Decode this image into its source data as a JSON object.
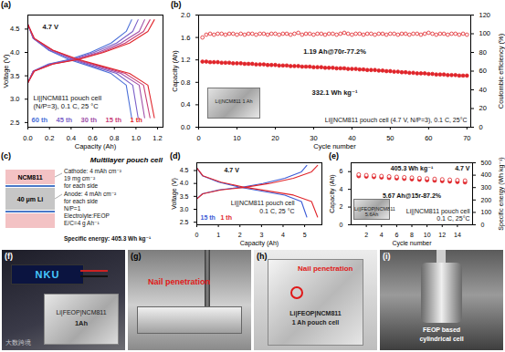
{
  "chart_data": [
    {
      "panel_label": "(a)",
      "type": "line",
      "xlabel": "Capacity (Ah)",
      "ylabel": "Voltage (V)",
      "xlim": [
        0,
        1.25
      ],
      "xticks": [
        {
          "value": 0,
          "label": "0.0"
        },
        0.2,
        0.4,
        0.6,
        0.8,
        {
          "value": 1,
          "label": "1.0"
        },
        1.2
      ],
      "ylim": [
        2.4,
        4.8
      ],
      "yticks": [
        2.5,
        {
          "value": 3,
          "label": "3.0"
        },
        3.5,
        {
          "value": 4,
          "label": "4.0"
        },
        4.5
      ],
      "annotations": [
        "4.7 V",
        "Li||NCM811 pouch cell",
        "(N/P=3), 0.1 C, 25 °C"
      ],
      "legend": "bottom-left",
      "series": [
        {
          "name": "60 th",
          "color": "#4a6fd8",
          "x": [
            0,
            0.05,
            0.19,
            0.38,
            0.58,
            0.77,
            0.91,
            0.96,
            0.96,
            0,
            0.05,
            0.19,
            0.38,
            0.58,
            0.77,
            0.91,
            0.96
          ],
          "values": [
            3.35,
            3.6,
            3.75,
            3.85,
            4.0,
            4.2,
            4.45,
            4.7,
            null,
            4.6,
            4.3,
            4.05,
            3.85,
            3.7,
            3.55,
            3.3,
            2.6
          ]
        },
        {
          "name": "45 th",
          "color": "#7a5fc8",
          "x": [
            0,
            0.05,
            0.2,
            0.41,
            0.61,
            0.82,
            0.97,
            1.02,
            1.02,
            0,
            0.05,
            0.2,
            0.41,
            0.61,
            0.82,
            0.97,
            1.02
          ],
          "values": [
            3.35,
            3.6,
            3.75,
            3.85,
            4.0,
            4.2,
            4.45,
            4.7,
            null,
            4.6,
            4.3,
            4.05,
            3.85,
            3.7,
            3.55,
            3.3,
            2.6
          ]
        },
        {
          "name": "30 th",
          "color": "#a04fa8",
          "x": [
            0,
            0.05,
            0.22,
            0.43,
            0.65,
            0.86,
            1.03,
            1.08,
            1.08,
            0,
            0.05,
            0.22,
            0.43,
            0.65,
            0.86,
            1.03,
            1.08
          ],
          "values": [
            3.35,
            3.6,
            3.75,
            3.85,
            4.0,
            4.2,
            4.45,
            4.7,
            null,
            4.6,
            4.3,
            4.05,
            3.85,
            3.7,
            3.55,
            3.3,
            2.6
          ]
        },
        {
          "name": "15 th",
          "color": "#c84078",
          "x": [
            0,
            0.06,
            0.23,
            0.45,
            0.68,
            0.9,
            1.07,
            1.13,
            1.13,
            0,
            0.06,
            0.23,
            0.45,
            0.68,
            0.9,
            1.07,
            1.13
          ],
          "values": [
            3.35,
            3.6,
            3.75,
            3.85,
            4.0,
            4.2,
            4.45,
            4.7,
            null,
            4.6,
            4.3,
            4.05,
            3.85,
            3.7,
            3.55,
            3.3,
            2.6
          ]
        },
        {
          "name": "1 th",
          "color": "#e0242a",
          "x": [
            0,
            0.06,
            0.23,
            0.47,
            0.7,
            0.94,
            1.11,
            1.17,
            1.17,
            0,
            0.06,
            0.23,
            0.47,
            0.7,
            0.94,
            1.11,
            1.17
          ],
          "values": [
            3.35,
            3.6,
            3.75,
            3.85,
            4.0,
            4.2,
            4.45,
            4.7,
            null,
            4.6,
            4.3,
            4.05,
            3.85,
            3.7,
            3.55,
            3.3,
            2.6
          ]
        }
      ]
    },
    {
      "panel_label": "(b)",
      "type": "scatter",
      "xlabel": "Cycle number",
      "ylabel": "Capacity (Ah)",
      "y2label": "Coulombic efficiency (%)",
      "x": [
        1,
        2,
        3,
        4,
        5,
        6,
        7,
        8,
        9,
        10,
        11,
        12,
        13,
        14,
        15,
        16,
        17,
        18,
        19,
        20,
        21,
        22,
        23,
        24,
        25,
        26,
        27,
        28,
        29,
        30,
        31,
        32,
        33,
        34,
        35,
        36,
        37,
        38,
        39,
        40,
        41,
        42,
        43,
        44,
        45,
        46,
        47,
        48,
        49,
        50,
        51,
        52,
        53,
        54,
        55,
        56,
        57,
        58,
        59,
        60,
        61,
        62,
        63,
        64,
        65,
        66,
        67,
        68,
        69,
        70
      ],
      "xlim": [
        0,
        71
      ],
      "xticks": [
        0,
        10,
        20,
        30,
        40,
        50,
        60,
        70
      ],
      "ylim": [
        0,
        2
      ],
      "yticks": [
        {
          "value": 0,
          "label": "0.0"
        },
        0.4,
        0.8,
        1.2,
        1.6,
        {
          "value": 2,
          "label": "2.0"
        }
      ],
      "y2lim": [
        0,
        120
      ],
      "y2ticks": [
        0,
        20,
        40,
        60,
        80,
        100,
        120
      ],
      "annotations": [
        "1.19 Ah@70r-77.2%",
        "332.1 Wh kg⁻¹",
        "Li||NCM811 pouch cell (4.7 V, N/P=3), 0.1 C, 25°C"
      ],
      "inset_label": "Li||NCM811 1 Ah",
      "series": [
        {
          "color": "#e0242a",
          "marker": "circle",
          "values": [
            1.17,
            1.17,
            1.16,
            1.16,
            1.16,
            1.15,
            1.15,
            1.15,
            1.14,
            1.14,
            1.14,
            1.13,
            1.13,
            1.13,
            1.12,
            1.12,
            1.12,
            1.11,
            1.11,
            1.11,
            1.1,
            1.1,
            1.1,
            1.09,
            1.09,
            1.09,
            1.08,
            1.08,
            1.08,
            1.07,
            1.07,
            1.07,
            1.06,
            1.06,
            1.06,
            1.05,
            1.05,
            1.05,
            1.04,
            1.04,
            1.04,
            1.03,
            1.03,
            1.02,
            1.02,
            1.02,
            1.01,
            1.01,
            1.0,
            1.0,
            0.99,
            0.99,
            0.98,
            0.98,
            0.97,
            0.97,
            0.96,
            0.96,
            0.96,
            0.95,
            0.95,
            0.94,
            0.94,
            0.94,
            0.93,
            0.93,
            0.93,
            0.92,
            0.92,
            0.92
          ]
        },
        {
          "color": "#e0242a",
          "marker": "ring",
          "axis": "y2",
          "values": [
            96,
            99,
            100,
            99,
            100,
            100,
            99,
            100,
            100,
            99,
            100,
            99,
            100,
            100,
            99,
            100,
            100,
            99,
            100,
            100,
            99,
            100,
            100,
            99,
            100,
            101,
            99,
            100,
            100,
            99,
            100,
            100,
            99,
            100,
            100,
            99,
            100,
            101,
            100,
            99,
            100,
            100,
            99,
            100,
            100,
            99,
            100,
            100,
            99,
            100,
            100,
            99,
            100,
            100,
            99,
            100,
            100,
            99,
            100,
            101,
            100,
            99,
            100,
            100,
            99,
            100,
            100,
            99,
            100,
            99
          ]
        }
      ]
    },
    {
      "panel_label": "(d)",
      "type": "line",
      "xlabel": "Capacity (Ah)",
      "ylabel": "Voltage (V)",
      "xlim": [
        0,
        5.8
      ],
      "xticks": [
        0,
        1,
        2,
        3,
        4,
        5
      ],
      "ylim": [
        2.4,
        4.8
      ],
      "yticks": [
        2.5,
        {
          "value": 3,
          "label": "3.0"
        },
        3.5,
        {
          "value": 4,
          "label": "4.0"
        },
        4.5
      ],
      "annotations": [
        "4.7 V",
        "Li||NCM811 pouch cell",
        "0.1 C, 25 °C"
      ],
      "legend": "bottom-left",
      "series": [
        {
          "name": "15 th",
          "color": "#3b5bd6",
          "x": [
            0,
            0.26,
            1.02,
            2.04,
            3.06,
            4.08,
            4.85,
            5.1,
            5.1,
            0,
            0.26,
            1.02,
            2.04,
            3.06,
            4.08,
            4.85,
            5.1
          ],
          "values": [
            3.4,
            3.6,
            3.75,
            3.85,
            4.0,
            4.2,
            4.45,
            4.7,
            null,
            4.6,
            4.3,
            4.05,
            3.85,
            3.7,
            3.55,
            3.3,
            2.7
          ]
        },
        {
          "name": "1 th",
          "color": "#e0242a",
          "x": [
            0,
            0.28,
            1.12,
            2.24,
            3.36,
            4.48,
            5.32,
            5.6,
            5.6,
            0,
            0.28,
            1.12,
            2.24,
            3.36,
            4.48,
            5.32,
            5.6
          ],
          "values": [
            3.4,
            3.6,
            3.75,
            3.85,
            4.0,
            4.2,
            4.45,
            4.7,
            null,
            4.6,
            4.3,
            4.05,
            3.85,
            3.7,
            3.55,
            3.3,
            2.7
          ]
        }
      ]
    },
    {
      "panel_label": "(e)",
      "type": "scatter",
      "xlabel": "Cycle number",
      "ylabel": "Capacity (Ah)",
      "y2label": "Specific energy (Wh kg⁻¹)",
      "x": [
        1,
        2,
        3,
        4,
        5,
        6,
        7,
        8,
        9,
        10,
        11,
        12,
        13,
        14,
        15
      ],
      "xlim": [
        0,
        16
      ],
      "xticks": [
        2,
        4,
        6,
        8,
        10,
        12,
        14
      ],
      "ylim": [
        0,
        7
      ],
      "yticks": [
        0,
        2,
        4,
        6
      ],
      "y2lim": [
        0,
        500
      ],
      "y2ticks": [
        0,
        100,
        200,
        300,
        400,
        500
      ],
      "annotations": [
        "405.3 Wh kg⁻¹",
        "4.7 V",
        "5.67 Ah@15r-87.2%",
        "Li||NCM811 pouch cell",
        "0.1 C, 25°C"
      ],
      "inset_label": "Li||FEOP|NCM811 5.6Ah",
      "series": [
        {
          "color": "#e0242a",
          "marker": "circle",
          "values": [
            5.5,
            5.45,
            5.4,
            5.35,
            5.3,
            5.25,
            5.2,
            5.15,
            5.1,
            5.05,
            5.0,
            4.95,
            4.9,
            4.85,
            4.8
          ]
        },
        {
          "color": "#e0242a",
          "marker": "ring",
          "axis": "y2",
          "values": [
            405.3,
            400,
            397,
            393,
            390,
            386,
            383,
            380,
            376,
            373,
            370,
            366,
            363,
            360,
            356
          ]
        }
      ]
    }
  ],
  "diagram": {
    "panel_label": "(c)",
    "title": "Multilayer pouch cell",
    "layers": [
      "NCM811",
      "40 μm Li"
    ],
    "cathode": [
      "Cathode: 4 mAh cm⁻²",
      "19 mg cm⁻²",
      "for each side"
    ],
    "anode": [
      "Anode: 4 mAh cm⁻²",
      "for each side",
      "N/P=1"
    ],
    "electrolyte": [
      "Electrolyte:FEOP",
      "E/C=4 g Ah⁻¹"
    ],
    "specific_energy": "Specific energy: 405.3 Wh kg⁻¹"
  },
  "photos": [
    {
      "panel_label": "(f)",
      "texts": [
        "NKU",
        "Li|FEOP|NCM811",
        "1Ah"
      ]
    },
    {
      "panel_label": "(g)",
      "texts": [
        "Nail penetration"
      ]
    },
    {
      "panel_label": "(h)",
      "texts": [
        "Nail penetration",
        "Li|FEOP|NCM811",
        "1 Ah pouch cell"
      ]
    },
    {
      "panel_label": "(i)",
      "texts": [
        "FEOP based",
        "cylindrical cell"
      ]
    }
  ],
  "watermark": "大数跨境"
}
